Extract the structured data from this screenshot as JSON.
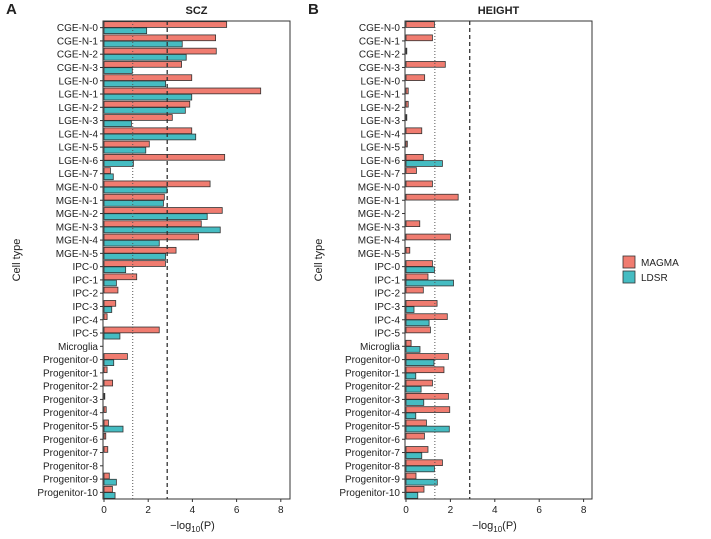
{
  "chart_data": [
    {
      "type": "bar",
      "orientation": "horizontal",
      "panel_label": "A",
      "title": "SCZ",
      "xlabel_prefix": "−log",
      "xlabel_sub": "10",
      "xlabel_suffix": "(P)",
      "ylabel": "Cell type",
      "xlim": [
        0,
        8.3
      ],
      "xticks": [
        0,
        2,
        4,
        6,
        8
      ],
      "reference_lines": [
        {
          "value": 1.3,
          "style": "dotted"
        },
        {
          "value": 2.86,
          "style": "dashed"
        }
      ],
      "categories": [
        "CGE-N-0",
        "CGE-N-1",
        "CGE-N-2",
        "CGE-N-3",
        "LGE-N-0",
        "LGE-N-1",
        "LGE-N-2",
        "LGE-N-3",
        "LGE-N-4",
        "LGE-N-5",
        "LGE-N-6",
        "LGE-N-7",
        "MGE-N-0",
        "MGE-N-1",
        "MGE-N-2",
        "MGE-N-3",
        "MGE-N-4",
        "MGE-N-5",
        "IPC-0",
        "IPC-1",
        "IPC-2",
        "IPC-3",
        "IPC-4",
        "IPC-5",
        "Microglia",
        "Progenitor-0",
        "Progenitor-1",
        "Progenitor-2",
        "Progenitor-3",
        "Progenitor-4",
        "Progenitor-5",
        "Progenitor-6",
        "Progenitor-7",
        "Progenitor-8",
        "Progenitor-9",
        "Progenitor-10"
      ],
      "series": [
        {
          "name": "MAGMA",
          "values": [
            5.55,
            5.05,
            5.08,
            3.51,
            3.97,
            7.09,
            3.88,
            3.09,
            3.97,
            2.05,
            5.46,
            0.29,
            4.8,
            2.73,
            5.35,
            4.4,
            4.28,
            3.26,
            2.78,
            1.48,
            0.63,
            0.53,
            0.14,
            2.5,
            0,
            1.06,
            0.14,
            0.39,
            0.02,
            0.1,
            0.2,
            0.08,
            0.17,
            0,
            0.24,
            0.38
          ]
        },
        {
          "name": "LDSR",
          "values": [
            1.93,
            3.54,
            3.72,
            1.28,
            2.79,
            3.97,
            3.68,
            1.24,
            4.15,
            1.89,
            1.33,
            0.42,
            2.85,
            2.69,
            4.67,
            5.26,
            2.5,
            2.79,
            0.98,
            0.56,
            0,
            0.35,
            0,
            0.72,
            0,
            0.44,
            0,
            0,
            0,
            0,
            0.86,
            0,
            0,
            0,
            0.56,
            0.5
          ]
        }
      ]
    },
    {
      "type": "bar",
      "orientation": "horizontal",
      "panel_label": "B",
      "title": "HEIGHT",
      "xlabel_prefix": "−log",
      "xlabel_sub": "10",
      "xlabel_suffix": "(P)",
      "ylabel": "Cell type",
      "xlim": [
        0,
        8.3
      ],
      "xticks": [
        0,
        2,
        4,
        6,
        8
      ],
      "reference_lines": [
        {
          "value": 1.3,
          "style": "dotted"
        },
        {
          "value": 2.87,
          "style": "dashed"
        }
      ],
      "categories": [
        "CGE-N-0",
        "CGE-N-1",
        "CGE-N-2",
        "CGE-N-3",
        "LGE-N-0",
        "LGE-N-1",
        "LGE-N-2",
        "LGE-N-3",
        "LGE-N-4",
        "LGE-N-5",
        "LGE-N-6",
        "LGE-N-7",
        "MGE-N-0",
        "MGE-N-1",
        "MGE-N-2",
        "MGE-N-3",
        "MGE-N-4",
        "MGE-N-5",
        "IPC-0",
        "IPC-1",
        "IPC-2",
        "IPC-3",
        "IPC-4",
        "IPC-5",
        "Microglia",
        "Progenitor-0",
        "Progenitor-1",
        "Progenitor-2",
        "Progenitor-3",
        "Progenitor-4",
        "Progenitor-5",
        "Progenitor-6",
        "Progenitor-7",
        "Progenitor-8",
        "Progenitor-9",
        "Progenitor-10"
      ],
      "series": [
        {
          "name": "MAGMA",
          "values": [
            1.28,
            1.19,
            0.02,
            1.77,
            0.84,
            0.1,
            0.1,
            0.02,
            0.71,
            0.06,
            0.78,
            0.47,
            1.19,
            2.35,
            0,
            0.62,
            2.0,
            0.17,
            1.19,
            0.99,
            0.78,
            1.4,
            1.86,
            1.1,
            0.23,
            1.91,
            1.71,
            1.19,
            1.91,
            1.97,
            0.92,
            0.83,
            0.99,
            1.64,
            0.45,
            0.81
          ]
        },
        {
          "name": "LDSR",
          "values": [
            0,
            0,
            0,
            0,
            0,
            0,
            0,
            0,
            0,
            0,
            1.64,
            0,
            0,
            0,
            0,
            0,
            0,
            0,
            1.28,
            2.14,
            0,
            0.36,
            1.04,
            0,
            0.63,
            1.26,
            0.44,
            0.68,
            0.8,
            0.44,
            1.95,
            0,
            0.71,
            1.28,
            1.41,
            0.53
          ]
        }
      ]
    }
  ],
  "legend": {
    "items": [
      {
        "label": "MAGMA",
        "color": "#F07C70"
      },
      {
        "label": "LDSR",
        "color": "#45BCC2"
      }
    ]
  }
}
